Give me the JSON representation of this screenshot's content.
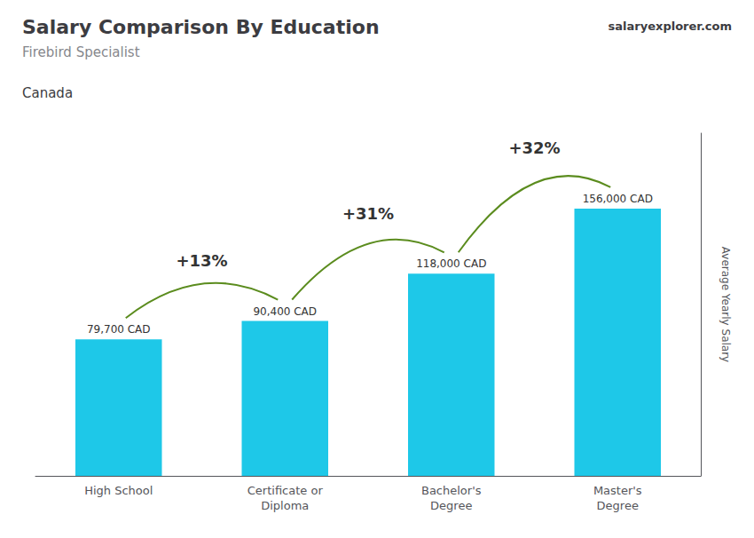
{
  "chart_data": {
    "type": "bar",
    "title": "Salary Comparison By Education",
    "subtitle": "Firebird Specialist",
    "ylabel": "Average Yearly Salary",
    "categories": [
      "High School",
      "Certificate or\nDiploma",
      "Bachelor's\nDegree",
      "Master's\nDegree"
    ],
    "values": [
      79700,
      90400,
      118000,
      156000
    ],
    "value_labels": [
      "79,700 CAD",
      "90,400 CAD",
      "118,000 CAD",
      "156,000 CAD"
    ],
    "data_labels": true,
    "color": "#1EC8E8",
    "ylim": [
      0,
      200000
    ],
    "tick_labels": "x",
    "grid": false,
    "annotations": {
      "changes": [
        "+13%",
        "+31%",
        "+32%"
      ],
      "country": "Canada",
      "source": "salaryexplorer.com"
    }
  }
}
